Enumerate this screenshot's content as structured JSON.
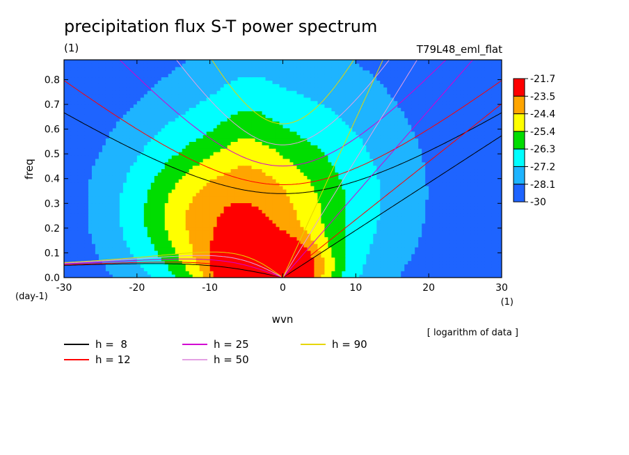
{
  "chart_data": {
    "type": "heatmap",
    "title": "precipitation flux S-T power spectrum",
    "units_left": "(1)",
    "experiment": "T79L48_eml_flat",
    "xlabel": "wvn",
    "ylabel": "freq",
    "x_units": "(1)",
    "y_units": "(day-1)",
    "xlim": [
      -30,
      30
    ],
    "ylim": [
      0,
      0.88
    ],
    "xticks": [
      -30,
      -20,
      -10,
      0,
      10,
      20,
      30
    ],
    "yticks": [
      0.0,
      0.1,
      0.2,
      0.3,
      0.4,
      0.5,
      0.6,
      0.7,
      0.8
    ],
    "colorbar": {
      "levels": [
        "-21.7",
        "-23.5",
        "-24.4",
        "-25.4",
        "-26.3",
        "-27.2",
        "-28.1",
        "-30"
      ],
      "colors": [
        "#ff0000",
        "#ffa500",
        "#ffff00",
        "#00dd00",
        "#00ffff",
        "#1eb4ff",
        "#1e64ff"
      ]
    },
    "note": "[ logarithm of data ]",
    "dispersion_curves": [
      {
        "label": "h =  8",
        "h": 8,
        "color": "#000000"
      },
      {
        "label": "h = 12",
        "h": 12,
        "color": "#ff0000"
      },
      {
        "label": "h = 25",
        "h": 25,
        "color": "#d200d2"
      },
      {
        "label": "h = 50",
        "h": 50,
        "color": "#e3a0e3"
      },
      {
        "label": "h = 90",
        "h": 90,
        "color": "#e6d600"
      }
    ]
  }
}
